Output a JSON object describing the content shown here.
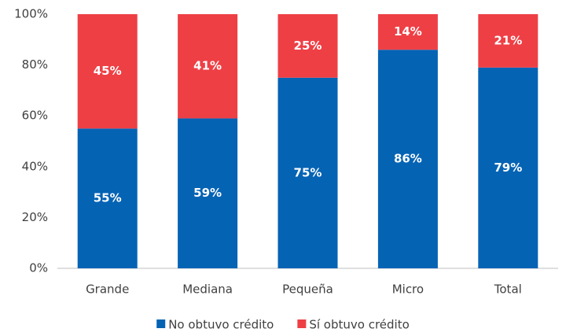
{
  "chart_data": {
    "type": "stacked_bar",
    "categories": [
      "Grande",
      "Mediana",
      "Pequeña",
      "Micro",
      "Total"
    ],
    "series": [
      {
        "name": "No obtuvo crédito",
        "color": "#0563b4",
        "values": [
          55,
          59,
          75,
          86,
          79
        ],
        "value_labels": [
          "55%",
          "59%",
          "75%",
          "86%",
          "79%"
        ]
      },
      {
        "name": "Sí obtuvo crédito",
        "color": "#ee3f45",
        "values": [
          45,
          41,
          25,
          14,
          21
        ],
        "value_labels": [
          "45%",
          "41%",
          "25%",
          "14%",
          "21%"
        ]
      }
    ],
    "ylim": [
      0,
      100
    ],
    "yticks": [
      {
        "value": 0,
        "label": "0%"
      },
      {
        "value": 20,
        "label": "20%"
      },
      {
        "value": 40,
        "label": "40%"
      },
      {
        "value": 60,
        "label": "60%"
      },
      {
        "value": 80,
        "label": "80%"
      },
      {
        "value": 100,
        "label": "100%"
      }
    ],
    "grid": false,
    "legend": "bottom"
  }
}
